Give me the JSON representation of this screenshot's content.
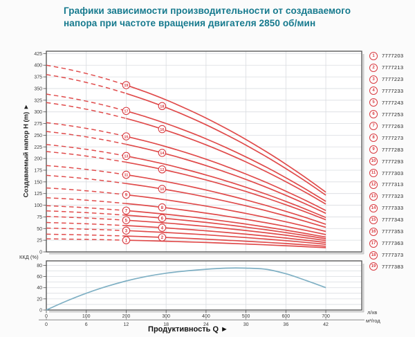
{
  "title": {
    "line1": "Графики зависимости производительности от создаваемого",
    "line2": "напора при частоте вращения двигателя 2850 об/мин"
  },
  "axes": {
    "ylabel": "Создаваемый напор H (m) ►",
    "xlabel": "Продуктивность Q ►",
    "eff_label": "ККД (%)",
    "unit_primary": "л/хв",
    "unit_secondary": "м³/год"
  },
  "colors": {
    "title": "#15798d",
    "curve": "#e04b4b",
    "marker": "#d8393f",
    "efficiency": "#7fb0c4",
    "grid": "#d9dce0",
    "axis": "#4e4e4e",
    "tick_text": "#3c3c3c",
    "scale_line": "#8a8a8a",
    "plot_bg": "#ffffff",
    "shadow": "#c9c9c9"
  },
  "chart_data": [
    {
      "type": "line",
      "title": "Pump head vs flow curves, 2850 rpm",
      "ylabel": "Создаваемый напор H (m)",
      "xlabel": "Продуктивность Q",
      "xlim": [
        0,
        790
      ],
      "ylim": [
        0,
        430
      ],
      "grid": true,
      "x_ticks": [
        0,
        100,
        200,
        300,
        400,
        500,
        600,
        700
      ],
      "x_ticks_secondary": [
        0,
        6,
        12,
        18,
        24,
        30,
        36,
        42
      ],
      "y_ticks": [
        0,
        25,
        50,
        75,
        100,
        125,
        150,
        175,
        200,
        225,
        250,
        275,
        300,
        325,
        350,
        375,
        400,
        425
      ],
      "q": [
        0,
        50,
        100,
        150,
        200,
        250,
        300,
        350,
        400,
        450,
        500,
        550,
        600,
        650,
        700
      ],
      "dash_until_q": 200,
      "series": [
        {
          "label": "1",
          "model": "7777203",
          "marker_q": 200,
          "values": [
            28,
            27.4,
            26.8,
            25.9,
            25,
            24,
            22.8,
            21.5,
            20.1,
            18.5,
            16.9,
            15.1,
            13.2,
            11.1,
            9
          ]
        },
        {
          "label": "2",
          "model": "7777213",
          "marker_q": 290,
          "values": [
            38,
            37.2,
            36.3,
            35.2,
            34,
            32.5,
            30.9,
            29.2,
            27.2,
            25.1,
            22.9,
            20.4,
            17.9,
            15.1,
            12.2
          ]
        },
        {
          "label": "3",
          "model": "7777223",
          "marker_q": 200,
          "values": [
            51,
            50,
            48.7,
            47.3,
            45.6,
            43.6,
            41.5,
            39.1,
            36.6,
            33.7,
            30.7,
            27.4,
            24,
            20.3,
            16.3
          ]
        },
        {
          "label": "4",
          "model": "7777233",
          "marker_q": 290,
          "values": [
            63,
            61.7,
            60.2,
            58.4,
            56.3,
            53.9,
            51.3,
            48.4,
            45.2,
            41.7,
            37.9,
            33.9,
            29.6,
            25,
            20.2
          ]
        },
        {
          "label": "5",
          "model": "7777243",
          "marker_q": 200,
          "values": [
            76,
            74.5,
            72.6,
            70.4,
            67.9,
            65,
            61.9,
            58.3,
            54.5,
            50.3,
            45.8,
            40.9,
            35.7,
            30.2,
            24.3
          ]
        },
        {
          "label": "6",
          "model": "7777253",
          "marker_q": 290,
          "values": [
            88,
            86.2,
            84.1,
            81.5,
            78.6,
            75.3,
            71.6,
            67.5,
            63.1,
            58.2,
            53,
            47.4,
            41.3,
            34.9,
            28.2
          ]
        },
        {
          "label": "7",
          "model": "7777263",
          "marker_q": 200,
          "values": [
            99,
            97,
            94.6,
            91.7,
            88.5,
            84.7,
            80.6,
            76,
            71,
            65.5,
            59.6,
            53.3,
            46.5,
            39.3,
            31.7
          ]
        },
        {
          "label": "8",
          "model": "7777273",
          "marker_q": 290,
          "values": [
            116,
            113.7,
            110.8,
            107.5,
            103.6,
            99.3,
            94.4,
            89,
            83.1,
            76.7,
            69.8,
            62.4,
            54.5,
            46.1,
            37.1
          ]
        },
        {
          "label": "9",
          "model": "7777283",
          "marker_q": 200,
          "values": [
            137,
            134.3,
            130.9,
            127,
            122.4,
            117.3,
            111.5,
            105.1,
            98.2,
            90.6,
            82.5,
            73.7,
            64.4,
            54.4,
            43.8
          ]
        },
        {
          "label": "10",
          "model": "7777293",
          "marker_q": 290,
          "values": [
            164,
            160.7,
            156.7,
            152,
            146.5,
            140.4,
            133.5,
            125.9,
            117.5,
            108.5,
            98.7,
            88.3,
            77.1,
            65.1,
            52.5
          ]
        },
        {
          "label": "11",
          "model": "7777303",
          "marker_q": 200,
          "values": [
            185,
            181.3,
            176.8,
            171.4,
            165.3,
            158.3,
            150.6,
            142,
            132.6,
            122.4,
            111.4,
            99.6,
            86.9,
            73.5,
            59.2
          ]
        },
        {
          "label": "12",
          "model": "7777313",
          "marker_q": 290,
          "values": [
            215,
            210.7,
            205.4,
            199.2,
            192.1,
            184,
            175,
            165,
            154.1,
            142.2,
            129.4,
            115.7,
            101,
            85.4,
            68.8
          ]
        },
        {
          "label": "13",
          "model": "7777323",
          "marker_q": 200,
          "values": [
            230,
            225.4,
            219.8,
            213.1,
            205.5,
            196.8,
            187.2,
            176.5,
            164.8,
            152.2,
            138.5,
            123.8,
            108.1,
            91.3,
            73.6
          ]
        },
        {
          "label": "14",
          "model": "7777333",
          "marker_q": 290,
          "values": [
            258,
            252.8,
            246.5,
            239.1,
            230.5,
            220.8,
            210,
            198,
            184.9,
            170.7,
            155.3,
            138.8,
            121.2,
            102.4,
            82.6
          ]
        },
        {
          "label": "15",
          "model": "7777343",
          "marker_q": 200,
          "values": [
            277,
            271.4,
            264.7,
            256.7,
            247.5,
            237.1,
            225.4,
            212.6,
            198.5,
            183.3,
            166.8,
            149.1,
            130.1,
            110,
            88.6
          ]
        },
        {
          "label": "16",
          "model": "7777353",
          "marker_q": 290,
          "values": [
            320,
            313.6,
            305.8,
            296.5,
            285.9,
            273.9,
            260.4,
            245.6,
            229.4,
            211.7,
            192.7,
            172.2,
            150.3,
            127.1,
            102.4
          ]
        },
        {
          "label": "17",
          "model": "7777363",
          "marker_q": 200,
          "values": [
            338,
            331.2,
            323,
            313.2,
            302,
            289.3,
            275.1,
            259.4,
            242.3,
            223.6,
            203.5,
            181.9,
            158.8,
            134.2,
            108.2
          ]
        },
        {
          "label": "18",
          "model": "7777373",
          "marker_q": 290,
          "values": [
            380,
            372.4,
            363.1,
            352.1,
            339.5,
            325.2,
            309.3,
            291.7,
            272.4,
            251.4,
            228.8,
            204.5,
            178.5,
            150.9,
            121.6
          ]
        },
        {
          "label": "19",
          "model": "7777383",
          "marker_q": 200,
          "values": [
            400,
            392,
            382.2,
            370.7,
            357.4,
            342.3,
            325.6,
            307,
            286.7,
            264.6,
            240.8,
            215.2,
            187.9,
            158.8,
            128
          ]
        }
      ]
    },
    {
      "type": "line",
      "title": "Efficiency curve",
      "ylabel": "ККД (%)",
      "xlim": [
        0,
        790
      ],
      "ylim": [
        0,
        88
      ],
      "grid": true,
      "y_ticks_labeled": [
        0,
        20,
        40,
        60,
        80
      ],
      "y_grid_step": 10,
      "x": [
        0,
        50,
        100,
        150,
        200,
        250,
        300,
        350,
        400,
        450,
        500,
        550,
        600,
        650,
        700
      ],
      "values": [
        0,
        16,
        30,
        42,
        52,
        60,
        66,
        70,
        73,
        75,
        75,
        73,
        65,
        53,
        40
      ]
    }
  ]
}
